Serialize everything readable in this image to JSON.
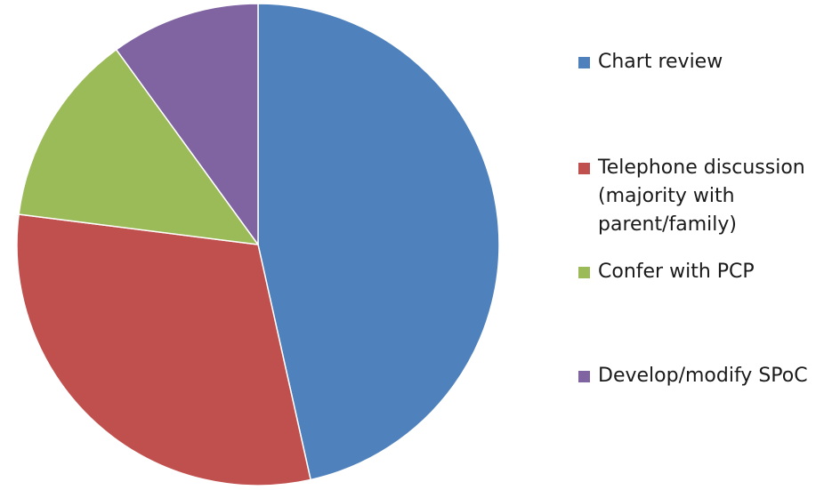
{
  "chart_data": {
    "type": "pie",
    "start_angle_deg": 0,
    "direction": "clockwise",
    "legend_position": "right",
    "slices": [
      {
        "label": "Chart review",
        "value": 46.5,
        "color": "#4f81bd"
      },
      {
        "label": "Telephone discussion\n(majority with\nparent/family)",
        "value": 30.5,
        "color": "#c0504d"
      },
      {
        "label": "Confer with PCP",
        "value": 13.0,
        "color": "#9bbb59"
      },
      {
        "label": "Develop/modify SPoC",
        "value": 10.0,
        "color": "#8064a2"
      }
    ]
  }
}
